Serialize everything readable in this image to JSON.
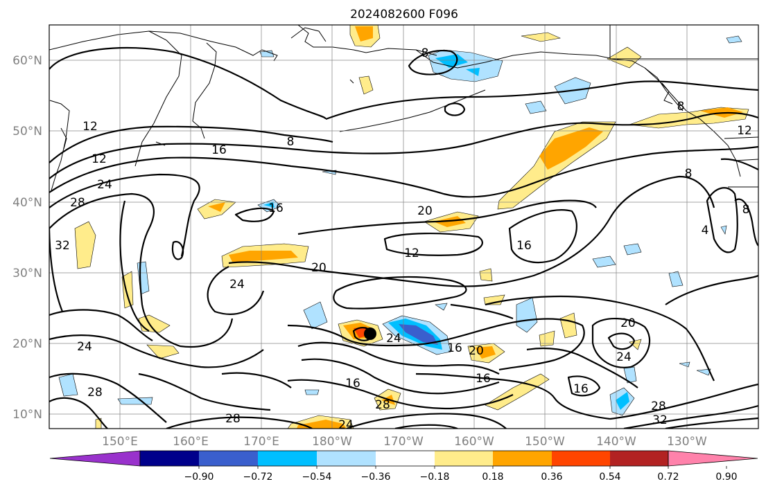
{
  "title": "2024082600 F096",
  "lat_labels": [
    "60°N",
    "50°N",
    "40°N",
    "30°N",
    "20°N",
    "10°N"
  ],
  "lon_labels": [
    "150°E",
    "160°E",
    "170°E",
    "180°W",
    "170°W",
    "160°W",
    "150°W",
    "140°W",
    "130°W"
  ],
  "colorbar": {
    "colors": [
      "#9932cc",
      "#00008b",
      "#3a5fcd",
      "#00bfff",
      "#b0e2ff",
      "#ffffff",
      "#ffec8b",
      "#ffa500",
      "#ff4500",
      "#b22222",
      "#ff82ab"
    ],
    "tick_labels": [
      "−0.90",
      "−0.72",
      "−0.54",
      "−0.36",
      "−0.18",
      "0.18",
      "0.36",
      "0.54",
      "0.72",
      "0.90"
    ]
  },
  "contour_labels": [
    "8",
    "8",
    "12",
    "12",
    "16",
    "24",
    "28",
    "32",
    "16",
    "20",
    "12",
    "20",
    "16",
    "24",
    "16",
    "20",
    "16",
    "16",
    "28",
    "24",
    "28",
    "20",
    "24",
    "16",
    "28",
    "32",
    "8",
    "4",
    "8",
    "12",
    "8",
    "24",
    "28",
    "24"
  ],
  "icons": {
    "storm": "tropical-cyclone-center-marker"
  }
}
